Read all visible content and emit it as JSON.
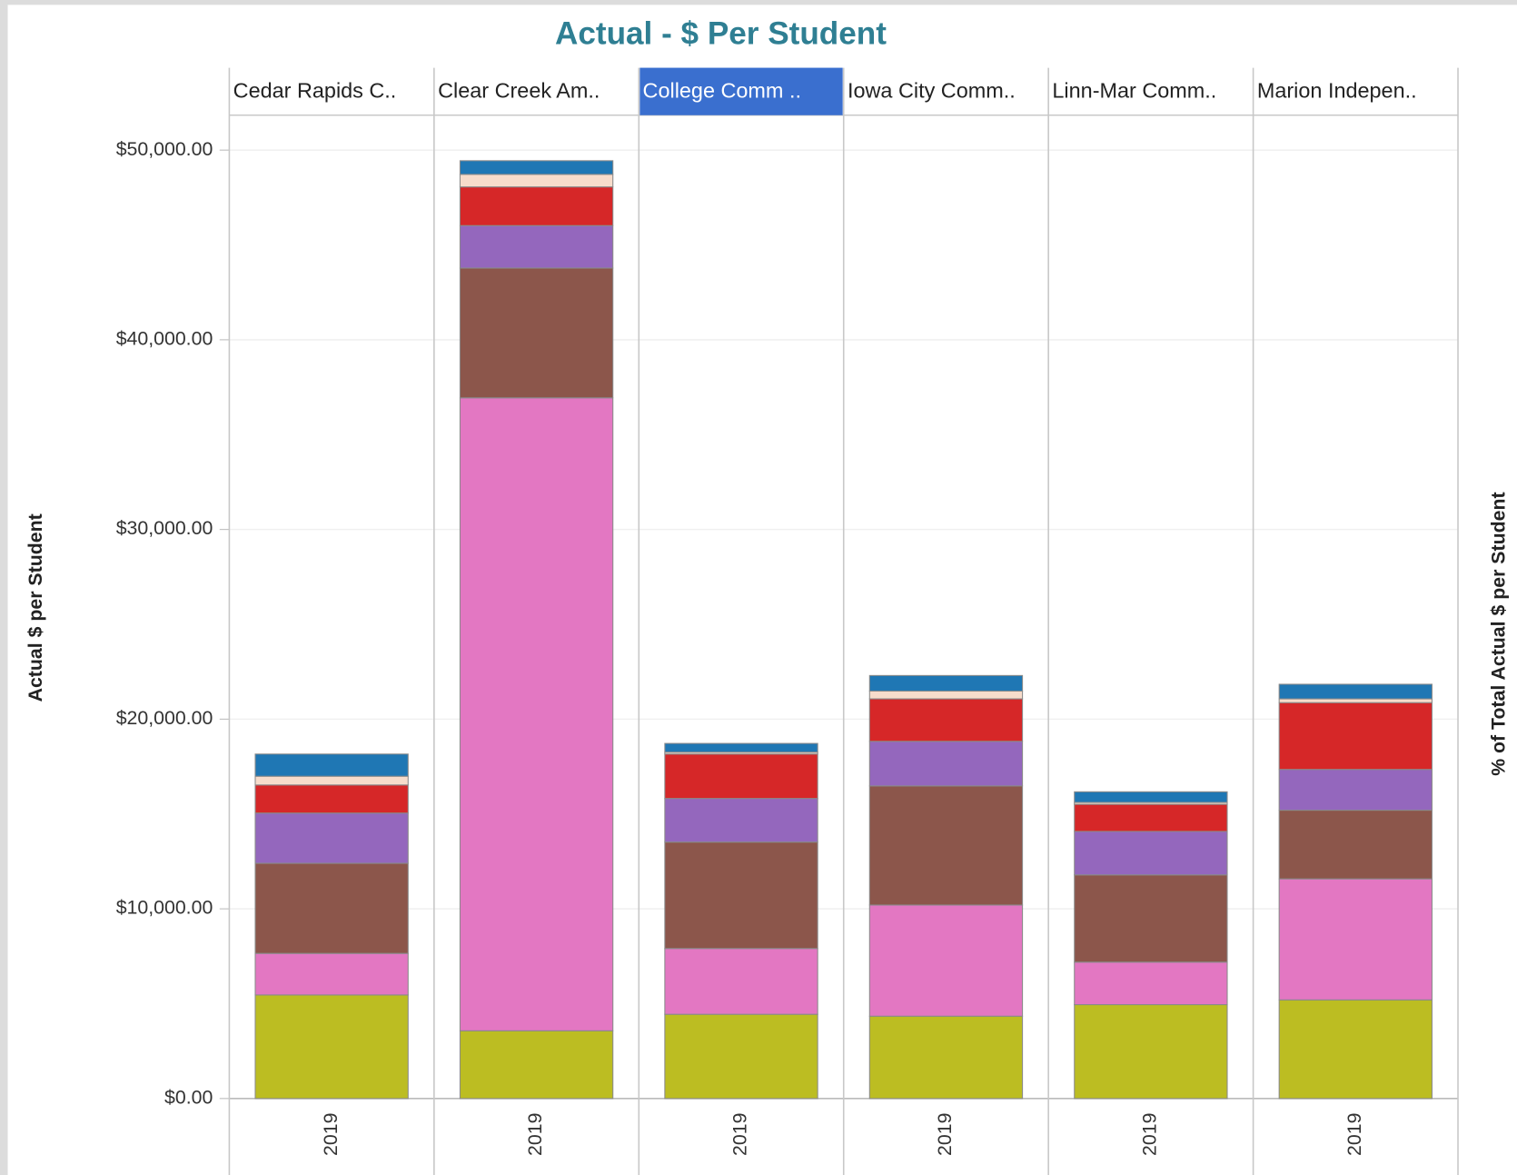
{
  "chart_data": {
    "type": "stacked_bar",
    "title": "Actual - $ Per Student",
    "y_label": "Actual $ per Student",
    "y2_label": "% of Total Actual $ per Student",
    "categories": [
      "Cedar Rapids C..",
      "Clear Creek Am..",
      "College Comm ..",
      "Iowa City Comm..",
      "Linn-Mar Comm..",
      "Marion Indepen.."
    ],
    "selected": 2,
    "periods": [
      "2019",
      "2019",
      "2019",
      "2019",
      "2019",
      "2019"
    ],
    "series": [
      {
        "color": "#bcbd22",
        "values": [
          5460,
          3570,
          4440,
          4340,
          4950,
          5200
        ]
      },
      {
        "color": "#e377c2",
        "values": [
          2190,
          33370,
          3470,
          5860,
          2240,
          6380
        ]
      },
      {
        "color": "#8c564b",
        "values": [
          4750,
          6840,
          5610,
          6280,
          4600,
          3620
        ]
      },
      {
        "color": "#9467bd",
        "values": [
          2650,
          2240,
          2300,
          2350,
          2290,
          2150
        ]
      },
      {
        "color": "#d62728",
        "values": [
          1480,
          2040,
          2340,
          2240,
          1430,
          3520
        ]
      },
      {
        "color": "#f7dccb",
        "values": [
          460,
          660,
          100,
          410,
          100,
          200
        ]
      },
      {
        "color": "#1f77b4",
        "values": [
          1170,
          720,
          460,
          820,
          560,
          770
        ]
      }
    ],
    "ylim": [
      0,
      51840
    ],
    "yticks": [
      {
        "value": 0,
        "label": "$0.00"
      },
      {
        "value": 10000,
        "label": "$10,000.00"
      },
      {
        "value": 20000,
        "label": "$20,000.00"
      },
      {
        "value": 30000,
        "label": "$30,000.00"
      },
      {
        "value": 40000,
        "label": "$40,000.00"
      },
      {
        "value": 50000,
        "label": "$50,000.00"
      }
    ],
    "grid": true
  }
}
